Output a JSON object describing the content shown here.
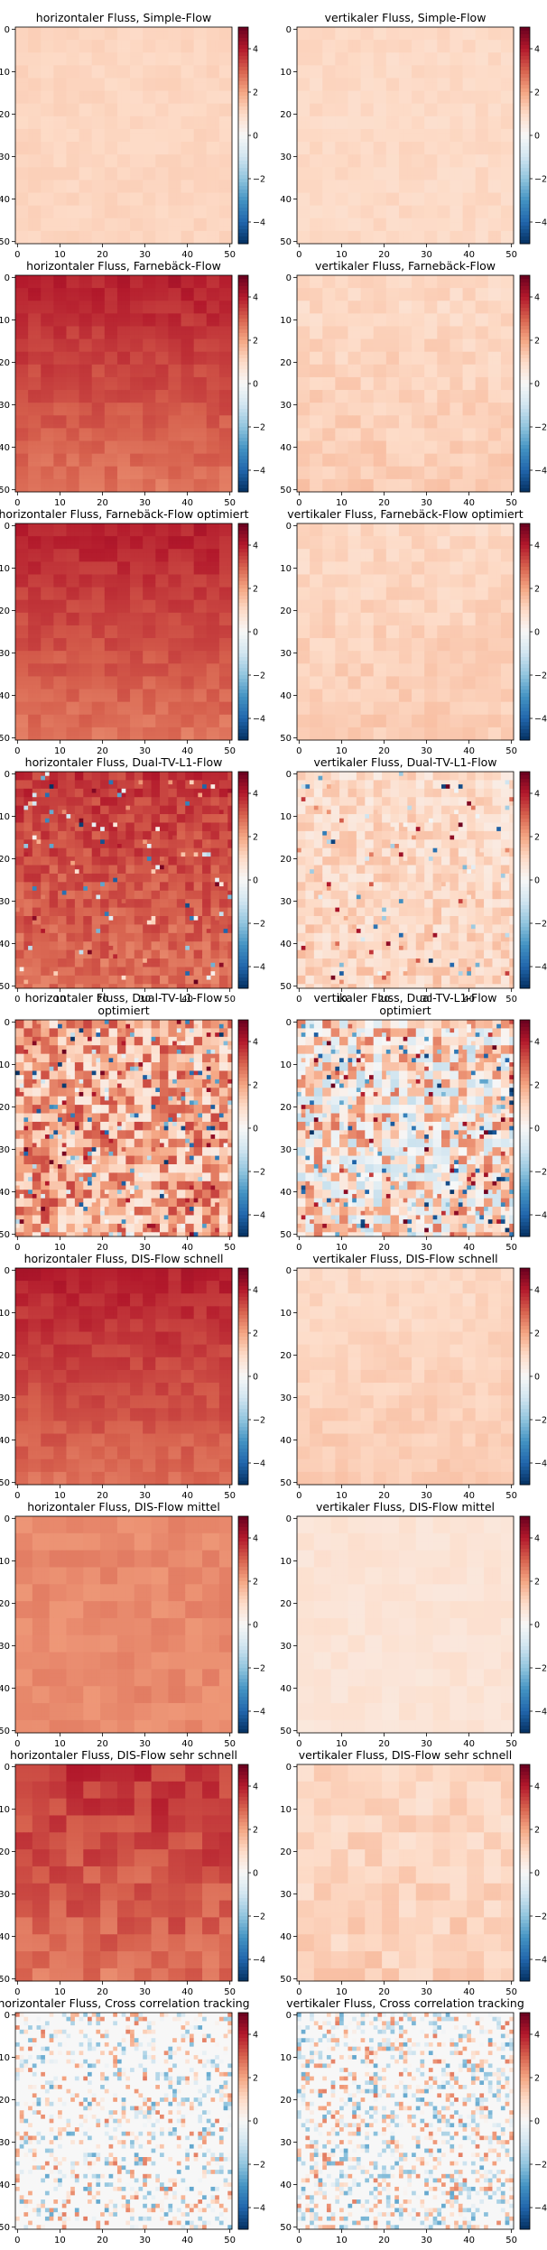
{
  "chart_data": {
    "type": "heatmap",
    "cmap": "RdBu_r",
    "vmin": -5,
    "vmax": 5,
    "xlim": [
      0,
      51
    ],
    "ylim": [
      51,
      0
    ],
    "x_ticks": [
      0,
      10,
      20,
      30,
      40,
      50
    ],
    "y_ticks": [
      0,
      10,
      20,
      30,
      40,
      50
    ],
    "colorbar_ticks": [
      4,
      2,
      0,
      -2,
      -4
    ],
    "panels": [
      {
        "title": [
          "horizontaler Fluss, Simple-Flow"
        ],
        "mean": 1.1,
        "gradient": 0.0,
        "noise": 0.12,
        "speckle": 0.0,
        "block": 3
      },
      {
        "title": [
          "vertikaler Fluss, Simple-Flow"
        ],
        "mean": 1.0,
        "gradient": 0.0,
        "noise": 0.15,
        "speckle": 0.0,
        "block": 3
      },
      {
        "title": [
          "horizontaler Fluss, Farnebäck-Flow"
        ],
        "mean": 3.9,
        "gradient": -1.2,
        "noise": 0.25,
        "speckle": 0.0,
        "block": 3
      },
      {
        "title": [
          "vertikaler Fluss, Farnebäck-Flow"
        ],
        "mean": 1.0,
        "gradient": 0.3,
        "noise": 0.25,
        "speckle": 0.0,
        "block": 3
      },
      {
        "title": [
          "horizontaler Fluss, Farnebäck-Flow optimiert"
        ],
        "mean": 3.9,
        "gradient": -1.2,
        "noise": 0.25,
        "speckle": 0.0,
        "block": 3
      },
      {
        "title": [
          "vertikaler Fluss, Farnebäck-Flow optimiert"
        ],
        "mean": 1.0,
        "gradient": 0.3,
        "noise": 0.25,
        "speckle": 0.0,
        "block": 3
      },
      {
        "title": [
          "horizontaler Fluss, Dual-TV-L1-Flow"
        ],
        "mean": 3.6,
        "gradient": -0.8,
        "noise": 0.45,
        "speckle": 0.04,
        "block": 2
      },
      {
        "title": [
          "vertikaler Fluss, Dual-TV-L1-Flow"
        ],
        "mean": 0.9,
        "gradient": 0.2,
        "noise": 0.55,
        "speckle": 0.04,
        "block": 2
      },
      {
        "title": [
          "horizontaler Fluss, Dual-TV-L1-Flow",
          "optimiert"
        ],
        "mean": 1.9,
        "gradient": 0.0,
        "noise": 1.5,
        "speckle": 0.1,
        "block": 2
      },
      {
        "title": [
          "vertikaler Fluss, Dual-TV-L1-Flow",
          "optimiert"
        ],
        "mean": 0.7,
        "gradient": 0.0,
        "noise": 2.0,
        "speckle": 0.12,
        "block": 2
      },
      {
        "title": [
          "horizontaler Fluss, DIS-Flow schnell"
        ],
        "mean": 3.9,
        "gradient": -1.1,
        "noise": 0.25,
        "speckle": 0.0,
        "block": 3
      },
      {
        "title": [
          "vertikaler Fluss, DIS-Flow schnell"
        ],
        "mean": 1.0,
        "gradient": 0.3,
        "noise": 0.2,
        "speckle": 0.0,
        "block": 3
      },
      {
        "title": [
          "horizontaler Fluss, DIS-Flow mittel"
        ],
        "mean": 2.4,
        "gradient": 0.0,
        "noise": 0.2,
        "speckle": 0.0,
        "block": 4
      },
      {
        "title": [
          "vertikaler Fluss, DIS-Flow mittel"
        ],
        "mean": 0.7,
        "gradient": 0.0,
        "noise": 0.15,
        "speckle": 0.0,
        "block": 4
      },
      {
        "title": [
          "horizontaler Fluss, DIS-Flow sehr schnell"
        ],
        "mean": 3.6,
        "gradient": -0.8,
        "noise": 0.45,
        "speckle": 0.0,
        "block": 4
      },
      {
        "title": [
          "vertikaler Fluss, DIS-Flow sehr schnell"
        ],
        "mean": 1.0,
        "gradient": 0.2,
        "noise": 0.35,
        "speckle": 0.0,
        "block": 4
      },
      {
        "title": [
          "horizontaler Fluss, Cross correlation tracking"
        ],
        "mean": 0.0,
        "gradient": 0.0,
        "noise": 0.0,
        "speckle": 0.3,
        "block": 2
      },
      {
        "title": [
          "vertikaler Fluss, Cross correlation tracking"
        ],
        "mean": 0.0,
        "gradient": 0.0,
        "noise": 0.0,
        "speckle": 0.4,
        "block": 2
      }
    ]
  }
}
